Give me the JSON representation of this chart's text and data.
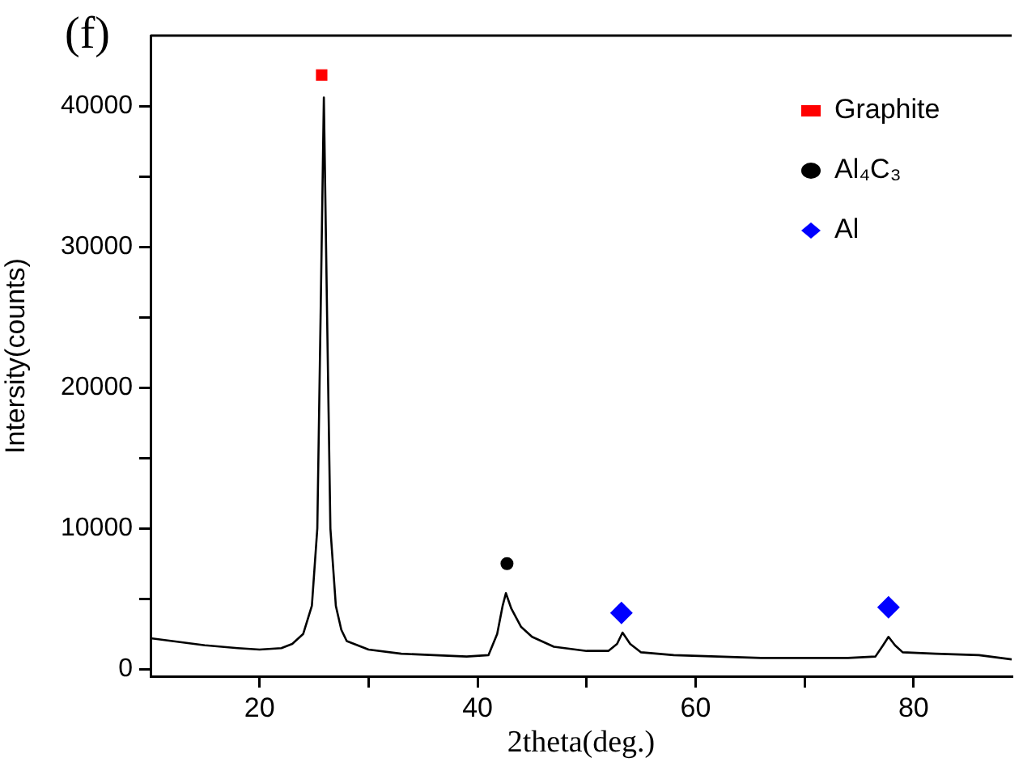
{
  "chart_data": {
    "type": "line",
    "title": "(f)",
    "xlabel": "2theta(deg.)",
    "ylabel": "Intersity(counts)",
    "xlim": [
      10,
      89
    ],
    "ylim": [
      -500,
      45000
    ],
    "xticks": [
      20,
      {
        "value": 30,
        "label": null
      },
      40,
      {
        "value": 50,
        "label": null
      },
      60,
      {
        "value": 70,
        "label": null
      },
      80
    ],
    "yticks": [
      0,
      {
        "value": 5000,
        "label": null
      },
      10000,
      {
        "value": 15000,
        "label": null
      },
      20000,
      {
        "value": 25000,
        "label": null
      },
      30000,
      {
        "value": 35000,
        "label": null
      },
      40000
    ],
    "grid": false,
    "legend": "top right",
    "series": [
      {
        "type": "line",
        "color": "#000000",
        "marker": "none",
        "x": [
          10,
          12,
          15,
          18,
          20,
          22,
          23,
          24,
          24.8,
          25.3,
          25.6,
          25.9,
          26.2,
          26.5,
          27,
          27.5,
          28,
          30,
          33,
          36,
          39,
          41,
          41.8,
          42.3,
          42.6,
          43.1,
          44,
          45,
          47,
          50,
          52,
          52.8,
          53.3,
          54,
          55,
          58,
          62,
          66,
          70,
          74,
          76.5,
          77.2,
          77.7,
          78.3,
          79,
          82,
          86,
          89
        ],
        "values": [
          2200,
          2000,
          1700,
          1500,
          1400,
          1500,
          1800,
          2500,
          4500,
          10000,
          25000,
          40600,
          25000,
          10000,
          4500,
          2800,
          2000,
          1400,
          1100,
          1000,
          900,
          1000,
          2500,
          4500,
          5400,
          4300,
          3000,
          2300,
          1600,
          1300,
          1300,
          1800,
          2600,
          1800,
          1200,
          1000,
          900,
          800,
          800,
          800,
          900,
          1700,
          2300,
          1700,
          1200,
          1100,
          1000,
          700
        ]
      },
      {
        "type": "scatter",
        "name": "Graphite",
        "color": "#ff0000",
        "marker": "square",
        "x": [
          25.7
        ],
        "values": [
          42200
        ]
      },
      {
        "type": "scatter",
        "name": "Al₄C₃",
        "color": "#000000",
        "marker": "circle",
        "x": [
          42.7
        ],
        "values": [
          7500
        ]
      },
      {
        "type": "scatter",
        "name": "Al",
        "color": "#0000ff",
        "marker": "diamond",
        "x": [
          53.2,
          77.7
        ],
        "values": [
          4000,
          4400
        ]
      }
    ]
  }
}
